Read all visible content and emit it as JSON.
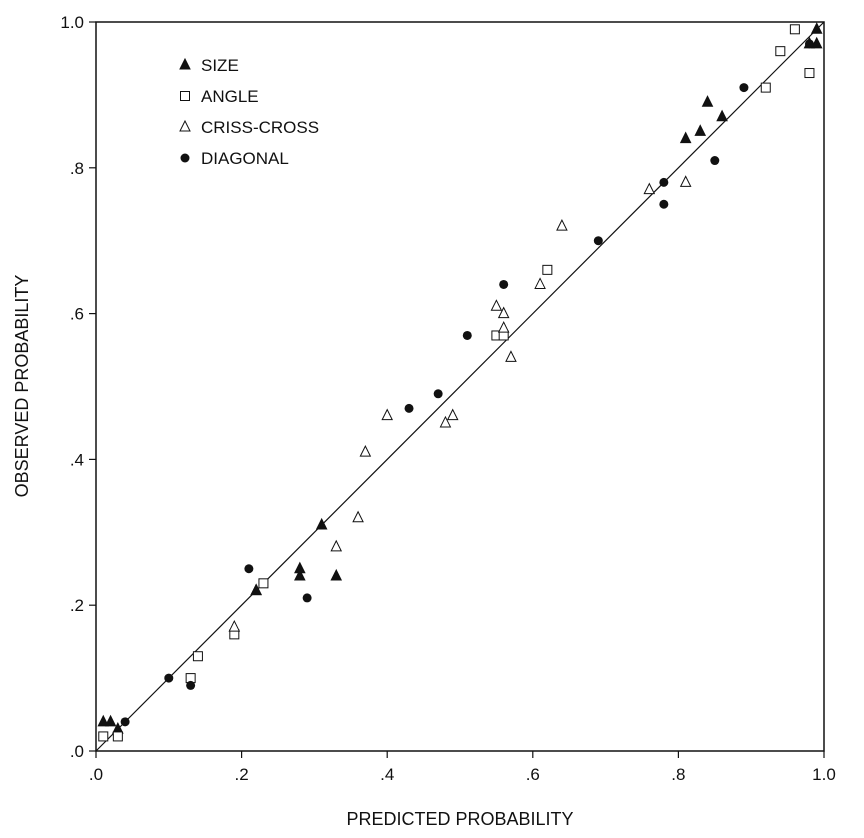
{
  "chart_data": {
    "type": "scatter",
    "xlabel": "PREDICTED PROBABILITY",
    "ylabel": "OBSERVED PROBABILITY",
    "xlim": [
      0,
      1
    ],
    "ylim": [
      0,
      1
    ],
    "x_ticks": [
      0,
      0.2,
      0.4,
      0.6,
      0.8,
      1.0
    ],
    "x_tick_labels": [
      ".0",
      ".2",
      ".4",
      ".6",
      ".8",
      "1.0"
    ],
    "y_ticks": [
      0,
      0.2,
      0.4,
      0.6,
      0.8,
      1.0
    ],
    "y_tick_labels": [
      ".0",
      ".2",
      ".4",
      ".6",
      ".8",
      "1.0"
    ],
    "grid": false,
    "legend_position": "top-left",
    "reference_line": {
      "x": [
        0,
        1
      ],
      "y": [
        0,
        1
      ]
    },
    "series": [
      {
        "name": "SIZE",
        "marker": "filled-triangle",
        "points": [
          [
            0.01,
            0.04
          ],
          [
            0.02,
            0.04
          ],
          [
            0.03,
            0.03
          ],
          [
            0.22,
            0.22
          ],
          [
            0.22,
            0.22
          ],
          [
            0.28,
            0.24
          ],
          [
            0.28,
            0.25
          ],
          [
            0.31,
            0.31
          ],
          [
            0.33,
            0.24
          ],
          [
            0.81,
            0.84
          ],
          [
            0.83,
            0.85
          ],
          [
            0.84,
            0.89
          ],
          [
            0.86,
            0.87
          ],
          [
            0.98,
            0.97
          ],
          [
            0.99,
            0.97
          ],
          [
            0.99,
            0.99
          ]
        ]
      },
      {
        "name": "ANGLE",
        "marker": "open-square",
        "points": [
          [
            0.01,
            0.02
          ],
          [
            0.03,
            0.02
          ],
          [
            0.13,
            0.1
          ],
          [
            0.14,
            0.13
          ],
          [
            0.19,
            0.16
          ],
          [
            0.23,
            0.23
          ],
          [
            0.55,
            0.57
          ],
          [
            0.56,
            0.57
          ],
          [
            0.62,
            0.66
          ],
          [
            0.92,
            0.91
          ],
          [
            0.94,
            0.96
          ],
          [
            0.96,
            0.99
          ],
          [
            0.98,
            0.93
          ]
        ]
      },
      {
        "name": "CRISS-CROSS",
        "marker": "open-triangle",
        "points": [
          [
            0.19,
            0.17
          ],
          [
            0.33,
            0.28
          ],
          [
            0.36,
            0.32
          ],
          [
            0.37,
            0.41
          ],
          [
            0.4,
            0.46
          ],
          [
            0.48,
            0.45
          ],
          [
            0.49,
            0.46
          ],
          [
            0.55,
            0.61
          ],
          [
            0.56,
            0.58
          ],
          [
            0.56,
            0.6
          ],
          [
            0.57,
            0.54
          ],
          [
            0.61,
            0.64
          ],
          [
            0.64,
            0.72
          ],
          [
            0.76,
            0.77
          ],
          [
            0.81,
            0.78
          ]
        ]
      },
      {
        "name": "DIAGONAL",
        "marker": "filled-circle",
        "points": [
          [
            0.04,
            0.04
          ],
          [
            0.1,
            0.1
          ],
          [
            0.13,
            0.09
          ],
          [
            0.21,
            0.25
          ],
          [
            0.29,
            0.21
          ],
          [
            0.43,
            0.47
          ],
          [
            0.47,
            0.49
          ],
          [
            0.51,
            0.57
          ],
          [
            0.56,
            0.64
          ],
          [
            0.69,
            0.7
          ],
          [
            0.78,
            0.75
          ],
          [
            0.78,
            0.78
          ],
          [
            0.85,
            0.81
          ],
          [
            0.89,
            0.91
          ],
          [
            0.98,
            0.97
          ]
        ]
      }
    ]
  }
}
